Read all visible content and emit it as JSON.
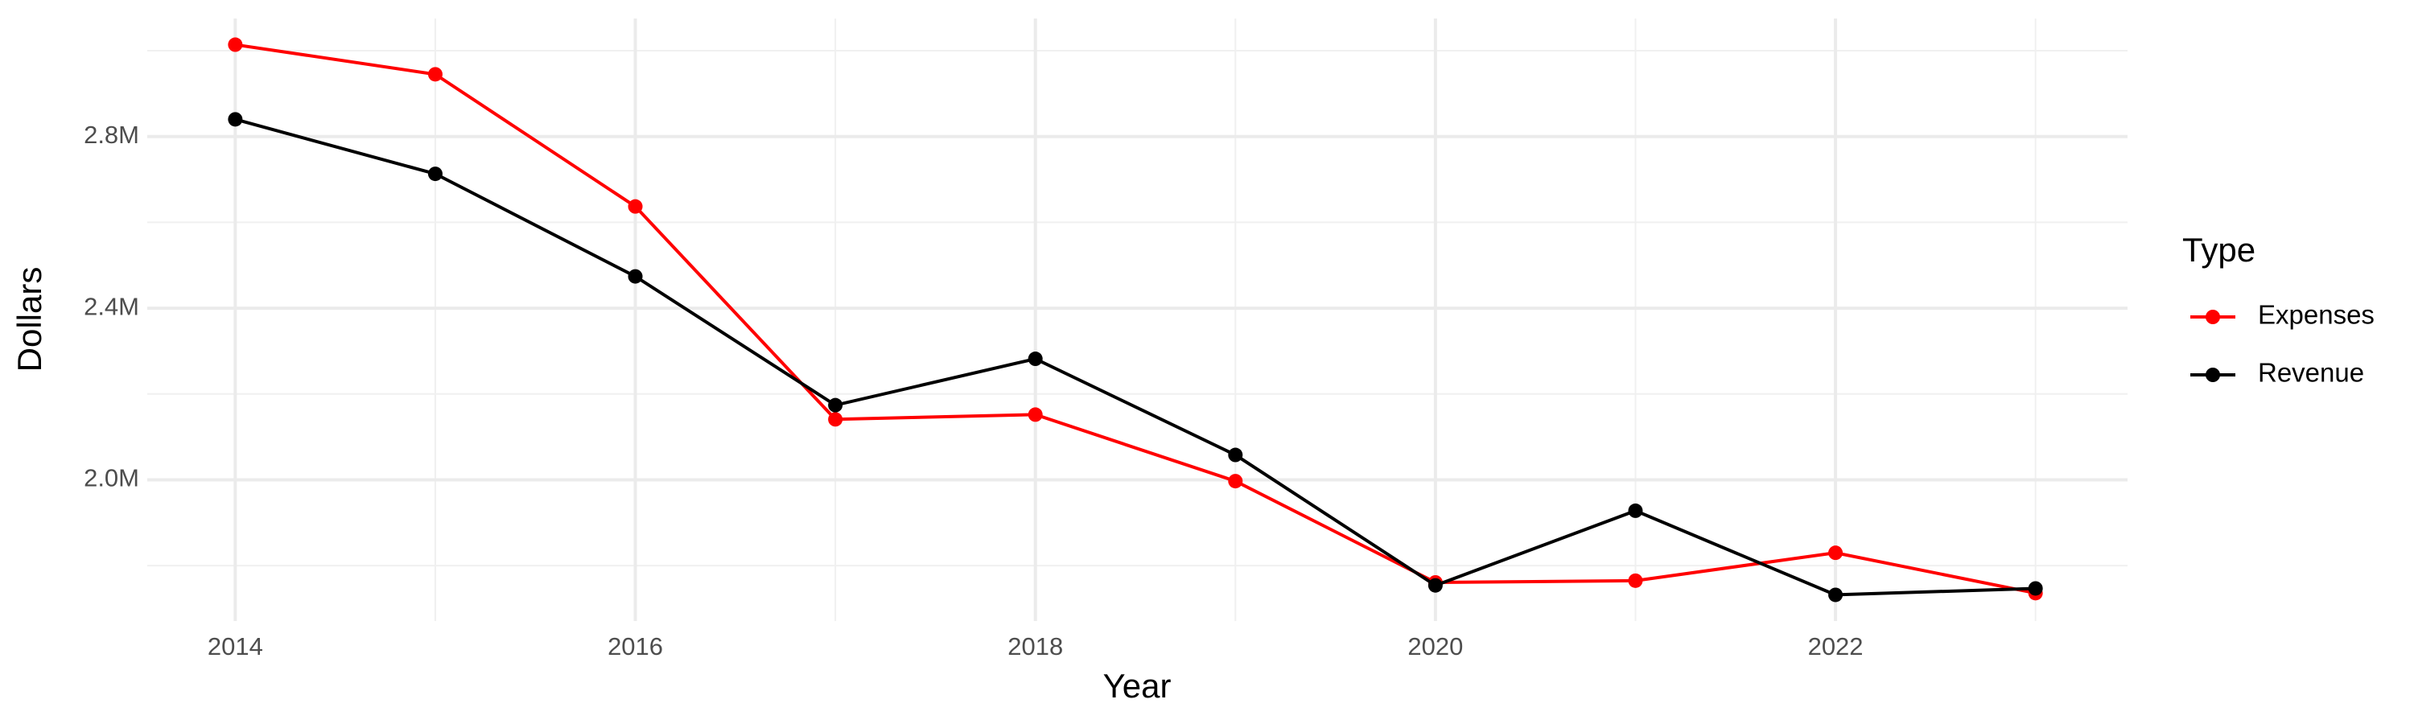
{
  "chart_data": {
    "type": "line",
    "x_label": "Year",
    "y_label": "Dollars",
    "legend_title": "Type",
    "x": [
      2014,
      2015,
      2016,
      2017,
      2018,
      2019,
      2020,
      2021,
      2022,
      2023
    ],
    "series": [
      {
        "name": "Expenses",
        "color": "#ff0000",
        "values": [
          3014000,
          2945000,
          2637000,
          2141000,
          2152000,
          1997000,
          1761000,
          1765000,
          1830000,
          1736000
        ]
      },
      {
        "name": "Revenue",
        "color": "#000000",
        "values": [
          2840000,
          2713000,
          2474000,
          2174000,
          2282000,
          2058000,
          1754000,
          1928000,
          1732000,
          1747000
        ]
      }
    ],
    "xlim": [
      2013.56,
      2023.46
    ],
    "xticks": [
      2014,
      2016,
      2018,
      2020,
      2022
    ],
    "ylim": [
      1671000,
      3075000
    ],
    "yticks": [
      {
        "value": 2000000,
        "label": "2.0M"
      },
      {
        "value": 2400000,
        "label": "2.4M"
      },
      {
        "value": 2800000,
        "label": "2.8M"
      }
    ],
    "grid": true,
    "legend_position": "right"
  }
}
